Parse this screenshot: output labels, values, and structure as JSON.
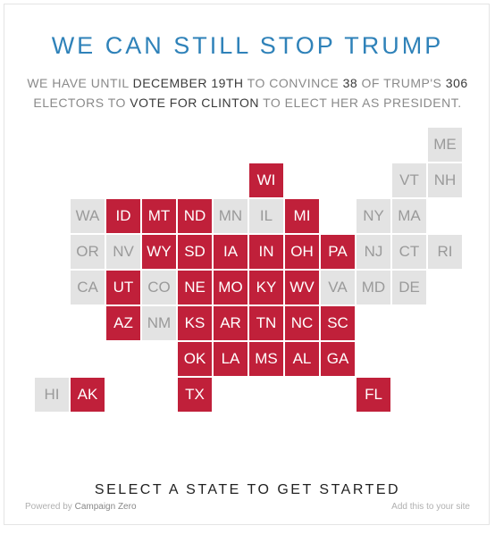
{
  "header": {
    "title": "WE CAN STILL STOP TRUMP",
    "subtitle": {
      "p1": "WE HAVE UNTIL ",
      "deadline": "DECEMBER 19TH",
      "p2": " TO CONVINCE ",
      "needed": "38",
      "p3": " OF TRUMP'S ",
      "total": "306",
      "p4": " ELECTORS TO ",
      "action": "VOTE FOR CLINTON",
      "p5": " TO ELECT HER AS PRESIDENT."
    }
  },
  "colors": {
    "trump_state": "#c0203a",
    "other_state": "#e3e3e3",
    "title": "#2f82b9"
  },
  "map": {
    "states": [
      {
        "abbr": "ME",
        "status": "off"
      },
      {
        "abbr": "WI",
        "status": "on"
      },
      {
        "abbr": "VT",
        "status": "off"
      },
      {
        "abbr": "NH",
        "status": "off"
      },
      {
        "abbr": "WA",
        "status": "off"
      },
      {
        "abbr": "ID",
        "status": "on"
      },
      {
        "abbr": "MT",
        "status": "on"
      },
      {
        "abbr": "ND",
        "status": "on"
      },
      {
        "abbr": "MN",
        "status": "off"
      },
      {
        "abbr": "IL",
        "status": "off"
      },
      {
        "abbr": "MI",
        "status": "on"
      },
      {
        "abbr": "NY",
        "status": "off"
      },
      {
        "abbr": "MA",
        "status": "off"
      },
      {
        "abbr": "OR",
        "status": "off"
      },
      {
        "abbr": "NV",
        "status": "off"
      },
      {
        "abbr": "WY",
        "status": "on"
      },
      {
        "abbr": "SD",
        "status": "on"
      },
      {
        "abbr": "IA",
        "status": "on"
      },
      {
        "abbr": "IN",
        "status": "on"
      },
      {
        "abbr": "OH",
        "status": "on"
      },
      {
        "abbr": "PA",
        "status": "on"
      },
      {
        "abbr": "NJ",
        "status": "off"
      },
      {
        "abbr": "CT",
        "status": "off"
      },
      {
        "abbr": "RI",
        "status": "off"
      },
      {
        "abbr": "CA",
        "status": "off"
      },
      {
        "abbr": "UT",
        "status": "on"
      },
      {
        "abbr": "CO",
        "status": "off"
      },
      {
        "abbr": "NE",
        "status": "on"
      },
      {
        "abbr": "MO",
        "status": "on"
      },
      {
        "abbr": "KY",
        "status": "on"
      },
      {
        "abbr": "WV",
        "status": "on"
      },
      {
        "abbr": "VA",
        "status": "off"
      },
      {
        "abbr": "MD",
        "status": "off"
      },
      {
        "abbr": "DE",
        "status": "off"
      },
      {
        "abbr": "AZ",
        "status": "on"
      },
      {
        "abbr": "NM",
        "status": "off"
      },
      {
        "abbr": "KS",
        "status": "on"
      },
      {
        "abbr": "AR",
        "status": "on"
      },
      {
        "abbr": "TN",
        "status": "on"
      },
      {
        "abbr": "NC",
        "status": "on"
      },
      {
        "abbr": "SC",
        "status": "on"
      },
      {
        "abbr": "OK",
        "status": "on"
      },
      {
        "abbr": "LA",
        "status": "on"
      },
      {
        "abbr": "MS",
        "status": "on"
      },
      {
        "abbr": "AL",
        "status": "on"
      },
      {
        "abbr": "GA",
        "status": "on"
      },
      {
        "abbr": "HI",
        "status": "off"
      },
      {
        "abbr": "AK",
        "status": "on"
      },
      {
        "abbr": "TX",
        "status": "on"
      },
      {
        "abbr": "FL",
        "status": "on"
      }
    ]
  },
  "cta": "SELECT A STATE TO GET STARTED",
  "footer": {
    "powered_prefix": "Powered by ",
    "powered_link": "Campaign Zero",
    "embed_link": "Add this to your site"
  }
}
